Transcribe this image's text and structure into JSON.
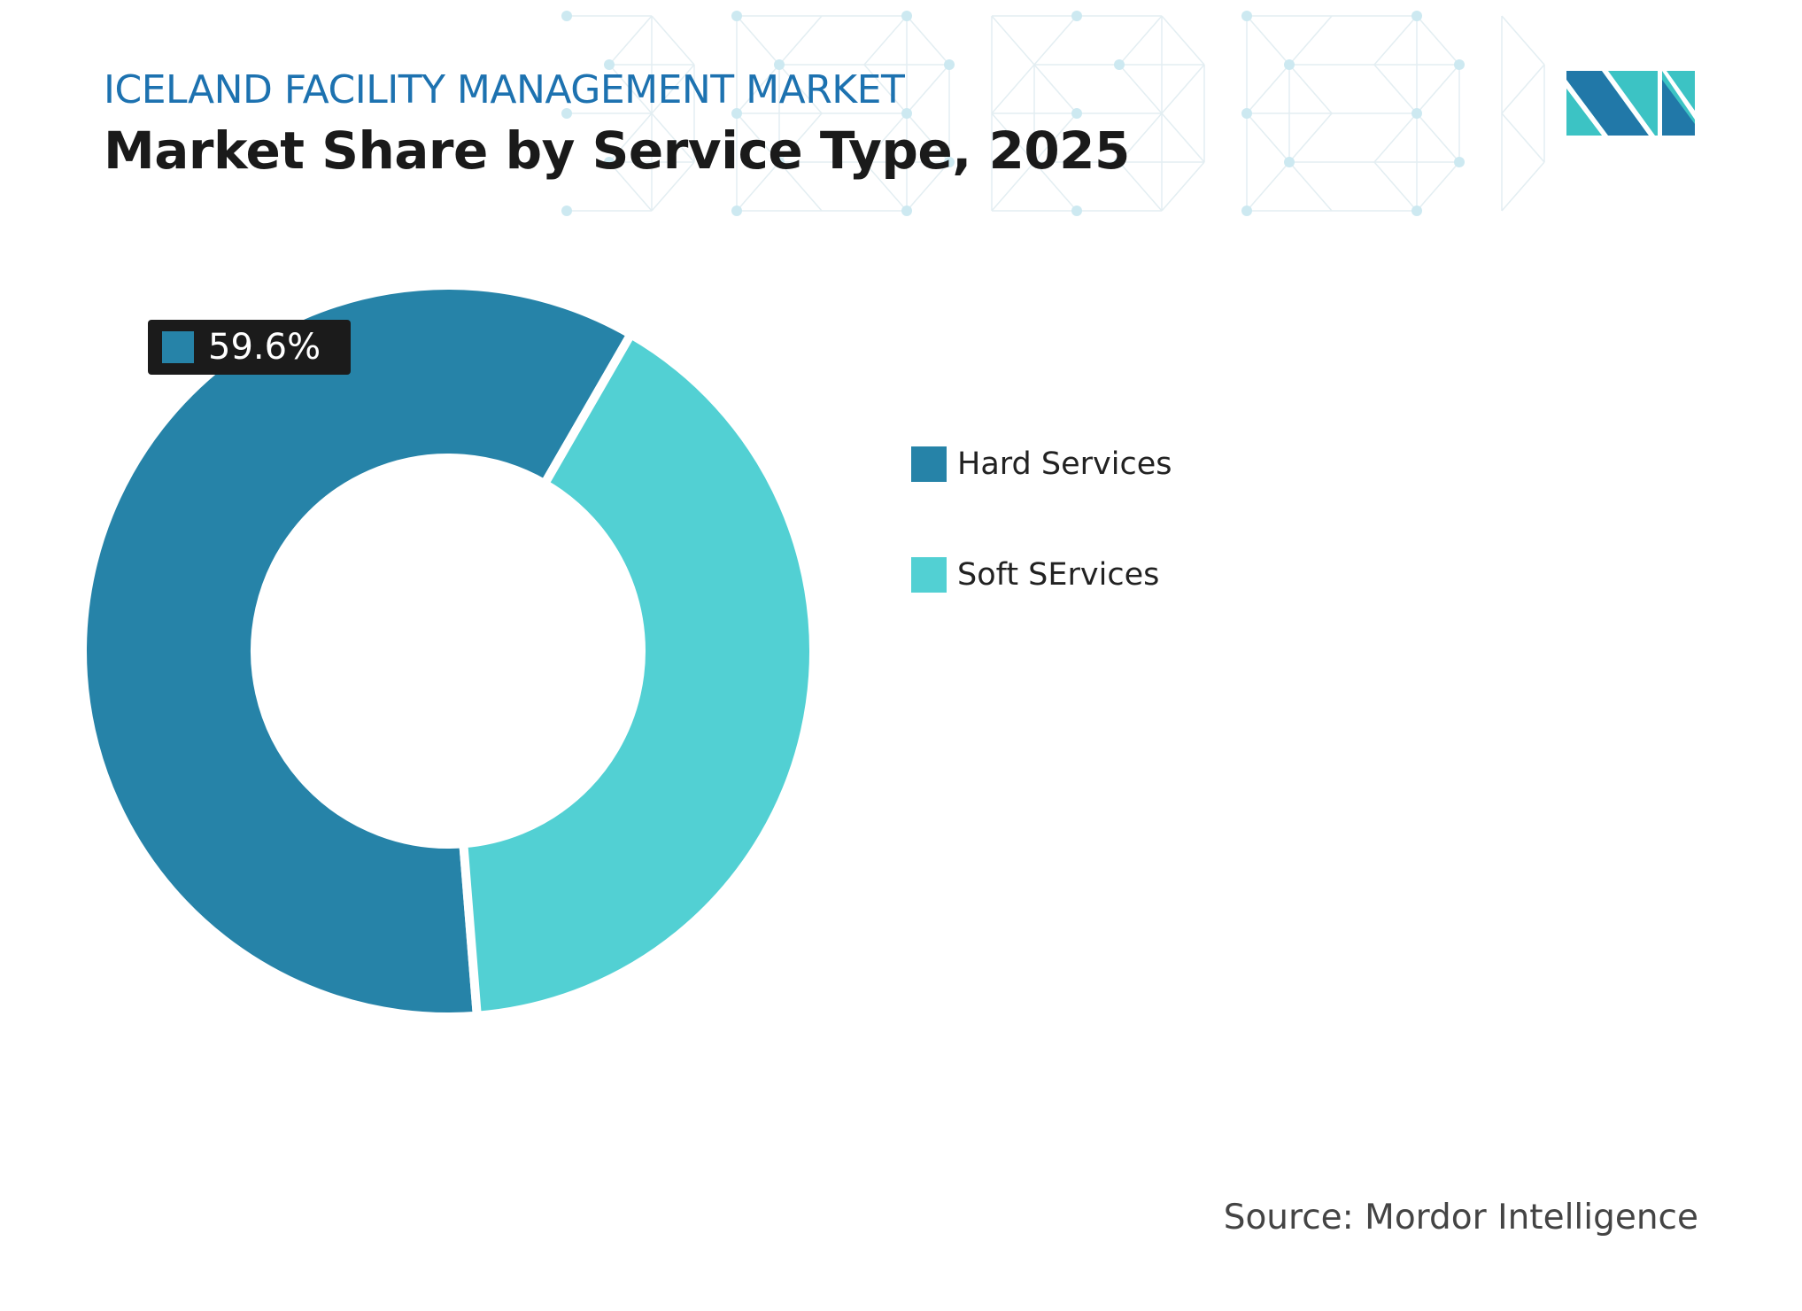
{
  "header": {
    "title": "ICELAND FACILITY MANAGEMENT MARKET",
    "subtitle": "Market Share by Service Type, 2025"
  },
  "chart_data": {
    "type": "pie",
    "variant": "donut",
    "title": "Market Share by Service Type, 2025",
    "categories": [
      "Hard Services",
      "Soft SErvices"
    ],
    "values": [
      59.6,
      40.4
    ],
    "colors": [
      "#2683a8",
      "#52d0d3"
    ],
    "data_labels": [
      {
        "category": "Hard Services",
        "text": "59.6%"
      }
    ],
    "legend_placement": "right"
  },
  "legend": {
    "items": [
      {
        "label": "Hard Services",
        "color": "#2683a8"
      },
      {
        "label": "Soft SErvices",
        "color": "#52d0d3"
      }
    ]
  },
  "source": "Source: Mordor Intelligence",
  "logo": {
    "text": "MI",
    "colors": [
      "#2178a8",
      "#3cc3c4"
    ]
  }
}
